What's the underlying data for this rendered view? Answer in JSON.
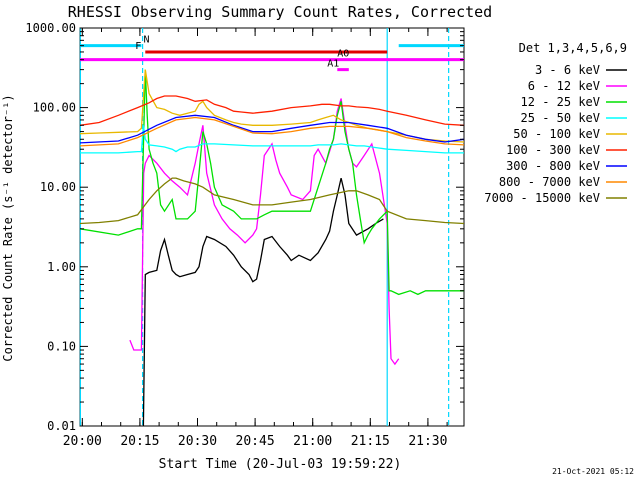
{
  "chart_data": {
    "type": "line",
    "title": "RHESSI Observing Summary Count Rates, Corrected",
    "xlabel": "Start Time (20-Jul-03 19:59:22)",
    "ylabel": "Corrected Count Rate (s⁻¹ detector⁻¹)",
    "yscale": "log",
    "ylim": [
      0.01,
      1000
    ],
    "xlim_minutes": [
      0,
      100
    ],
    "x_ticks": [
      {
        "t": 0.6,
        "label": "20:00"
      },
      {
        "t": 15.6,
        "label": "20:15"
      },
      {
        "t": 30.6,
        "label": "20:30"
      },
      {
        "t": 45.6,
        "label": "20:45"
      },
      {
        "t": 60.6,
        "label": "21:00"
      },
      {
        "t": 75.6,
        "label": "21:15"
      },
      {
        "t": 90.6,
        "label": "21:30"
      }
    ],
    "y_ticks": [
      {
        "v": 0.01,
        "label": "0.01"
      },
      {
        "v": 0.1,
        "label": "0.10"
      },
      {
        "v": 1,
        "label": "1.00"
      },
      {
        "v": 10,
        "label": "10.00"
      },
      {
        "v": 100,
        "label": "100.00"
      },
      {
        "v": 1000,
        "label": "1000.00"
      }
    ],
    "legend_title": "Det 1,3,4,5,6,9",
    "legend_position": "right",
    "series": [
      {
        "name": "3 - 6 keV",
        "color": "#000000",
        "x": [
          16.5,
          17,
          18,
          20,
          21,
          22,
          23,
          24,
          25,
          26,
          28,
          30,
          31,
          32,
          33,
          35,
          38,
          40,
          42,
          44,
          45,
          46,
          47,
          48,
          50,
          52,
          54,
          55,
          57,
          60,
          62,
          64,
          65,
          66,
          67,
          68,
          69,
          70,
          72,
          75,
          77,
          79
        ],
        "y": [
          0.01,
          0.8,
          0.85,
          0.9,
          1.6,
          2.2,
          1.4,
          0.9,
          0.8,
          0.75,
          0.8,
          0.85,
          1.0,
          1.8,
          2.4,
          2.2,
          1.8,
          1.4,
          1.0,
          0.8,
          0.65,
          0.7,
          1.2,
          2.2,
          2.4,
          1.8,
          1.4,
          1.2,
          1.4,
          1.2,
          1.5,
          2.2,
          2.8,
          5.0,
          8.0,
          13.0,
          8.0,
          3.5,
          2.5,
          3.0,
          3.5,
          4.0
        ]
      },
      {
        "name": "6 - 12 keV",
        "color": "#ff00ff",
        "x": [
          13,
          14,
          15,
          16,
          16.6,
          17,
          18,
          20,
          22,
          24,
          26,
          28,
          30,
          31,
          32,
          33,
          35,
          37,
          39,
          41,
          43,
          45,
          46,
          47,
          48,
          50,
          51,
          52,
          54,
          55,
          58,
          60,
          61,
          62,
          64,
          66,
          67,
          68,
          69,
          70,
          71,
          72,
          74,
          76,
          78,
          80,
          80.5,
          81,
          82,
          83
        ],
        "y": [
          0.12,
          0.09,
          0.09,
          0.09,
          15,
          20,
          25,
          20,
          15,
          12,
          10,
          8,
          20,
          35,
          60,
          15,
          6,
          4,
          3,
          2.5,
          2.0,
          2.5,
          3.0,
          8,
          25,
          35,
          22,
          15,
          10,
          8,
          7,
          9,
          25,
          30,
          20,
          40,
          90,
          130,
          60,
          30,
          20,
          18,
          25,
          35,
          15,
          3.5,
          0.3,
          0.07,
          0.06,
          0.07
        ]
      },
      {
        "name": "12 - 25 keV",
        "color": "#00e000",
        "x": [
          0,
          10,
          15,
          16,
          17,
          17.5,
          18,
          19,
          20,
          21,
          22,
          24,
          25,
          26,
          28,
          30,
          31,
          32,
          33,
          34,
          35,
          37,
          40,
          42,
          44,
          46,
          48,
          50,
          52,
          55,
          58,
          60,
          62,
          64,
          65,
          66,
          67,
          68,
          69,
          70,
          71,
          72,
          73,
          74,
          75,
          76,
          78,
          80,
          80.5,
          81,
          83,
          86,
          88,
          90,
          95,
          100
        ],
        "y": [
          3.0,
          2.5,
          3,
          3,
          300,
          80,
          30,
          20,
          15,
          6,
          5,
          7,
          4,
          4,
          4,
          5,
          15,
          50,
          35,
          20,
          10,
          6,
          5,
          4,
          4,
          4,
          4.5,
          5,
          5,
          5,
          5,
          5,
          10,
          20,
          30,
          40,
          80,
          120,
          50,
          30,
          20,
          8,
          4,
          2,
          2.5,
          3,
          4,
          5,
          0.5,
          0.5,
          0.45,
          0.5,
          0.45,
          0.5,
          0.5,
          0.5
        ]
      },
      {
        "name": "25 - 50 keV",
        "color": "#00ffff",
        "x": [
          0,
          5,
          10,
          15,
          16,
          16.5,
          17,
          18,
          20,
          22,
          24,
          25,
          26,
          28,
          30,
          32,
          35,
          40,
          45,
          50,
          55,
          60,
          62,
          64,
          66,
          68,
          70,
          72,
          74,
          76,
          78,
          80,
          85,
          90,
          95,
          100
        ],
        "y": [
          27,
          27,
          27,
          28,
          28,
          60,
          40,
          34,
          33,
          32,
          30,
          28,
          30,
          32,
          32,
          35,
          35,
          34,
          33,
          33,
          33,
          33,
          34,
          34,
          34,
          35,
          34,
          33,
          33,
          32,
          31,
          30,
          29,
          28,
          27,
          27
        ]
      },
      {
        "name": "50 - 100 keV",
        "color": "#e8b800",
        "x": [
          0,
          5,
          10,
          15,
          16,
          17,
          18,
          20,
          22,
          24,
          26,
          28,
          30,
          31,
          32,
          33,
          35,
          38,
          40,
          42,
          45,
          50,
          55,
          60,
          62,
          64,
          66,
          68,
          70,
          72,
          75,
          78,
          80,
          85,
          90,
          95,
          100
        ],
        "y": [
          47,
          48,
          49,
          50,
          55,
          300,
          150,
          100,
          95,
          85,
          80,
          85,
          90,
          110,
          120,
          100,
          80,
          70,
          65,
          62,
          60,
          60,
          62,
          65,
          70,
          75,
          80,
          70,
          65,
          60,
          55,
          52,
          50,
          45,
          40,
          38,
          37
        ]
      },
      {
        "name": "100 - 300 keV",
        "color": "#ff2000",
        "x": [
          0,
          5,
          10,
          15,
          18,
          20,
          22,
          25,
          28,
          30,
          33,
          35,
          38,
          40,
          42,
          45,
          50,
          55,
          60,
          63,
          65,
          68,
          70,
          72,
          75,
          78,
          80,
          85,
          90,
          95,
          100
        ],
        "y": [
          60,
          65,
          80,
          100,
          115,
          130,
          140,
          140,
          130,
          120,
          125,
          110,
          100,
          90,
          88,
          85,
          90,
          100,
          105,
          110,
          110,
          105,
          105,
          102,
          100,
          95,
          90,
          80,
          70,
          62,
          60
        ]
      },
      {
        "name": "300 - 800 keV",
        "color": "#0000ff",
        "x": [
          0,
          10,
          15,
          20,
          25,
          30,
          35,
          40,
          45,
          50,
          55,
          60,
          65,
          70,
          75,
          80,
          85,
          90,
          95,
          100
        ],
        "y": [
          36,
          38,
          45,
          60,
          75,
          80,
          75,
          60,
          50,
          50,
          55,
          60,
          65,
          65,
          60,
          55,
          45,
          40,
          37,
          40
        ]
      },
      {
        "name": "800 - 7000 keV",
        "color": "#ff8800",
        "x": [
          0,
          10,
          15,
          20,
          25,
          30,
          35,
          40,
          45,
          50,
          55,
          60,
          65,
          70,
          75,
          80,
          85,
          90,
          95,
          100
        ],
        "y": [
          33,
          35,
          42,
          55,
          70,
          75,
          70,
          58,
          48,
          47,
          50,
          55,
          58,
          58,
          55,
          50,
          42,
          38,
          35,
          34
        ]
      },
      {
        "name": "7000 - 15000 keV",
        "color": "#808000",
        "x": [
          0,
          5,
          10,
          15,
          18,
          20,
          22,
          24,
          25,
          27,
          30,
          32,
          35,
          40,
          45,
          50,
          55,
          60,
          65,
          70,
          72,
          75,
          78,
          80,
          85,
          90,
          95,
          100
        ],
        "y": [
          3.5,
          3.6,
          3.8,
          4.5,
          7,
          9,
          11,
          13,
          13,
          12,
          11,
          10,
          8,
          7,
          6,
          6,
          6.5,
          7,
          8,
          9,
          9,
          8,
          7,
          5,
          4,
          3.8,
          3.6,
          3.5
        ]
      }
    ],
    "annotations": [
      {
        "label": "N",
        "color": "#00d8ff",
        "t_start": 0,
        "t_end": 16,
        "t2_start": 83,
        "t2_end": 100,
        "level": 600
      },
      {
        "label": "F",
        "color": "#e00000",
        "t_start": 17,
        "t_end": 80,
        "level": 500
      },
      {
        "label": "A0",
        "color": "#ff00ff",
        "t_start": 0,
        "t_end": 100,
        "level": 400
      },
      {
        "label": "A1",
        "color": "#ff00ff",
        "t_start": 67,
        "t_end": 70,
        "level": 300
      }
    ],
    "vertical_lines": [
      {
        "t": 0.1,
        "color": "#00d8ff",
        "style": "solid"
      },
      {
        "t": 16.3,
        "color": "#00d8ff",
        "style": "dashed"
      },
      {
        "t": 80.0,
        "color": "#00d8ff",
        "style": "solid"
      },
      {
        "t": 96.0,
        "color": "#00d8ff",
        "style": "dashed"
      }
    ],
    "footer_date": "21-Oct-2021 05:12"
  }
}
